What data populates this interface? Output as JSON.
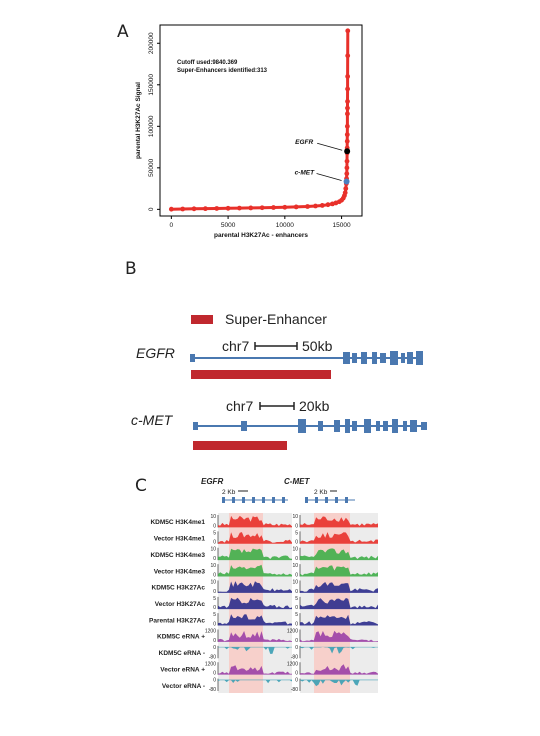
{
  "panels": {
    "a": "A",
    "b": "B",
    "c": "C"
  },
  "colors": {
    "red": "#e8302a",
    "black": "#000000",
    "blue_point": "#4a7fc0",
    "gene_blue": "#4a78b0",
    "super_enhancer": "#c0282e",
    "h3k4me1": "#e8302a",
    "h3k4me3": "#3fae49",
    "h3k27ac": "#2b2c8c",
    "erna": "#9b3fa6",
    "erna_neg": "#3a9fb4",
    "highlight": "#f7d0cb",
    "shade": "#ececec"
  },
  "chart_data": {
    "type": "scatter",
    "title": "",
    "annotations": [
      "Cutoff used:9840.369",
      "Super-Enhancers identified:313"
    ],
    "xlabel": "parental H3K27Ac - enhancers",
    "ylabel": "parental H3K27Ac Signal",
    "xlim": [
      -1000,
      16800
    ],
    "ylim": [
      -8000,
      222000
    ],
    "x_ticks": [
      {
        "v": 0,
        "l": "0"
      },
      {
        "v": 5000,
        "l": "5000"
      },
      {
        "v": 10000,
        "l": "10000"
      },
      {
        "v": 15000,
        "l": "15000"
      }
    ],
    "y_ticks": [
      {
        "v": 0,
        "l": "0"
      },
      {
        "v": 50000,
        "l": "50000"
      },
      {
        "v": 100000,
        "l": "100000"
      },
      {
        "v": 150000,
        "l": "150000"
      },
      {
        "v": 200000,
        "l": "200000"
      }
    ],
    "series": [
      {
        "values": [
          [
            0,
            200
          ],
          [
            1000,
            420
          ],
          [
            2000,
            640
          ],
          [
            3000,
            860
          ],
          [
            4000,
            1060
          ],
          [
            5000,
            1280
          ],
          [
            6000,
            1500
          ],
          [
            7000,
            1720
          ],
          [
            8000,
            1960
          ],
          [
            9000,
            2220
          ],
          [
            10000,
            2520
          ],
          [
            11000,
            2920
          ],
          [
            12000,
            3450
          ],
          [
            12700,
            4000
          ],
          [
            13300,
            4700
          ],
          [
            13800,
            5600
          ],
          [
            14200,
            6600
          ],
          [
            14500,
            7700
          ],
          [
            14800,
            9200
          ],
          [
            15000,
            11000
          ],
          [
            15150,
            13500
          ],
          [
            15250,
            16500
          ],
          [
            15320,
            20000
          ],
          [
            15370,
            25000
          ],
          [
            15420,
            31000
          ],
          [
            15440,
            37000
          ],
          [
            15460,
            43000
          ],
          [
            15470,
            50000
          ],
          [
            15480,
            58000
          ],
          [
            15490,
            68000
          ],
          [
            15495,
            74000
          ],
          [
            15500,
            82000
          ],
          [
            15505,
            90000
          ],
          [
            15510,
            100000
          ],
          [
            15515,
            115000
          ],
          [
            15520,
            122000
          ],
          [
            15525,
            130000
          ],
          [
            15530,
            145000
          ],
          [
            15535,
            160000
          ],
          [
            15540,
            185000
          ],
          [
            15545,
            215000
          ]
        ]
      }
    ],
    "highlighted": [
      {
        "label": "EGFR",
        "x": 15492,
        "y": 70000,
        "color": "#000000"
      },
      {
        "label": "c-MET",
        "x": 15440,
        "y": 33500,
        "color": "#4a7fc0"
      }
    ]
  },
  "panel_b": {
    "legend_label": "Super-Enhancer",
    "egfr": {
      "gene": "EGFR",
      "chr": "chr7",
      "scale": "50kb"
    },
    "cmet": {
      "gene": "c-MET",
      "chr": "chr7",
      "scale": "20kb"
    }
  },
  "panel_c": {
    "egfr_title": "EGFR",
    "cmet_title": "C-MET",
    "scale": "2 Kb",
    "tracks": [
      {
        "label": "KDM5C H3K4me1",
        "scale": "10",
        "zero": "0",
        "color": "h3k4me1"
      },
      {
        "label": "Vector H3K4me1",
        "scale": "5",
        "zero": "0",
        "color": "h3k4me1"
      },
      {
        "label": "KDM5C H3K4me3",
        "scale": "10",
        "zero": "0",
        "color": "h3k4me3"
      },
      {
        "label": "Vector H3K4me3",
        "scale": "10",
        "zero": "0",
        "color": "h3k4me3"
      },
      {
        "label": "KDM5C H3K27Ac",
        "scale": "10",
        "zero": "0",
        "color": "h3k27ac"
      },
      {
        "label": "Vector H3K27Ac",
        "scale": "5",
        "zero": "0",
        "color": "h3k27ac"
      },
      {
        "label": "Parental H3K27Ac",
        "scale": "5",
        "zero": "0",
        "color": "h3k27ac"
      },
      {
        "label": "KDM5C eRNA +",
        "scale": "1200",
        "zero": "0",
        "color": "erna"
      },
      {
        "label": "KDM5C eRNA -",
        "scale": "0",
        "zero": "-80",
        "color": "erna_neg"
      },
      {
        "label": "Vector eRNA +",
        "scale": "1200",
        "zero": "0",
        "color": "erna"
      },
      {
        "label": "Vector eRNA -",
        "scale": "0",
        "zero": "-80",
        "color": "erna_neg"
      }
    ]
  }
}
